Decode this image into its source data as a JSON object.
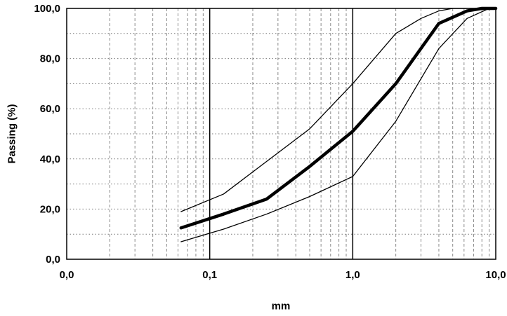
{
  "chart_data": {
    "type": "line",
    "title": "",
    "xlabel": "mm",
    "ylabel": "Passing (%)",
    "x_scale": "log",
    "xlim": [
      0.01,
      10
    ],
    "ylim": [
      0,
      100
    ],
    "grid": {
      "horizontal_step": 10,
      "vertical_minor": "log-decade-multiples-2-to-9",
      "vertical_major_values": [
        0.1,
        1
      ],
      "horizontal_style": "dotted",
      "vertical_minor_style": "dashed"
    },
    "x_ticks": [
      {
        "value": 0.01,
        "label": "0,0"
      },
      {
        "value": 0.1,
        "label": "0,1"
      },
      {
        "value": 1,
        "label": "1,0"
      },
      {
        "value": 10,
        "label": "10,0"
      }
    ],
    "y_ticks": [
      {
        "value": 0,
        "label": "0,0"
      },
      {
        "value": 20,
        "label": "20,0"
      },
      {
        "value": 40,
        "label": "40,0"
      },
      {
        "value": 60,
        "label": "60,0"
      },
      {
        "value": 80,
        "label": "80,0"
      },
      {
        "value": 100,
        "label": "100,0"
      }
    ],
    "series": [
      {
        "name": "upper-envelope",
        "style": "thin",
        "color": "#000000",
        "x": [
          0.063,
          0.125,
          0.25,
          0.5,
          1,
          2,
          3,
          4,
          5,
          10
        ],
        "y": [
          19,
          26,
          39,
          52,
          70,
          90,
          96,
          99,
          100,
          100
        ]
      },
      {
        "name": "grading-curve",
        "style": "thick",
        "color": "#000000",
        "x": [
          0.063,
          0.125,
          0.25,
          0.5,
          1,
          2,
          4,
          6.3,
          8,
          10
        ],
        "y": [
          12.5,
          18,
          24,
          37,
          51,
          70,
          94,
          99,
          100,
          100
        ]
      },
      {
        "name": "lower-envelope",
        "style": "thin",
        "color": "#000000",
        "x": [
          0.063,
          0.125,
          0.25,
          0.5,
          1,
          2,
          4,
          6.3,
          9,
          10
        ],
        "y": [
          7,
          12,
          18,
          25,
          33,
          55,
          84,
          96,
          100,
          100
        ]
      }
    ]
  }
}
